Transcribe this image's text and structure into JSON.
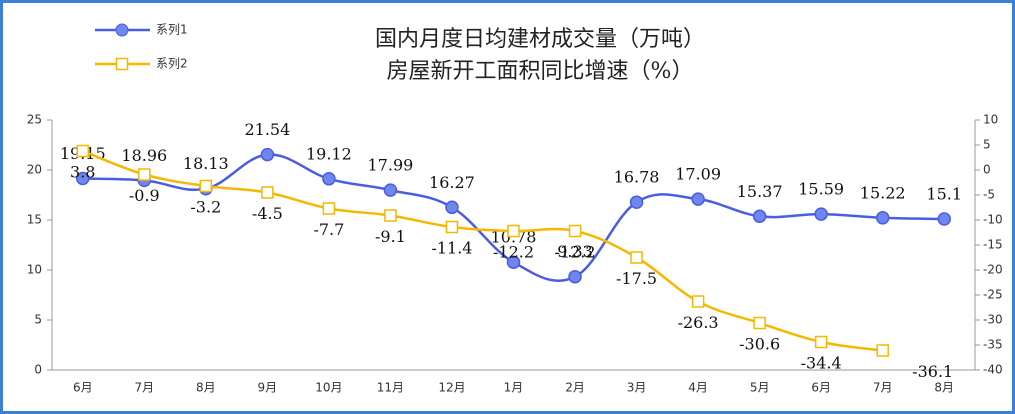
{
  "chart_data": {
    "type": "line",
    "title": [
      "国内月度日均建材成交量（万吨）",
      "房屋新开工面积同比增速（%）"
    ],
    "categories": [
      "6月",
      "7月",
      "8月",
      "9月",
      "10月",
      "11月",
      "12月",
      "1月",
      "2月",
      "3月",
      "4月",
      "5月",
      "6月",
      "7月",
      "8月"
    ],
    "series": [
      {
        "name": "系列1",
        "color": "#4a5de0",
        "values": [
          19.15,
          18.96,
          18.13,
          21.54,
          19.12,
          17.99,
          16.27,
          10.78,
          9.33,
          16.78,
          17.09,
          15.37,
          15.59,
          15.22,
          15.1
        ]
      },
      {
        "name": "系列2",
        "color": "#f5b800",
        "axis": "y2",
        "values": [
          3.8,
          -0.9,
          -3.2,
          -4.5,
          -7.7,
          -9.1,
          -11.4,
          -12.2,
          -12.2,
          -17.5,
          -26.3,
          -30.6,
          -34.4,
          -36.1,
          null
        ]
      }
    ],
    "ylim": [
      0,
      25
    ],
    "yticks": [
      0,
      5,
      10,
      15,
      20,
      25
    ],
    "y2lim": [
      -40,
      10
    ],
    "y2ticks": [
      10,
      5,
      0,
      -5,
      -10,
      -15,
      -20,
      -25,
      -30,
      -35,
      -40
    ],
    "legend": "top-left"
  }
}
